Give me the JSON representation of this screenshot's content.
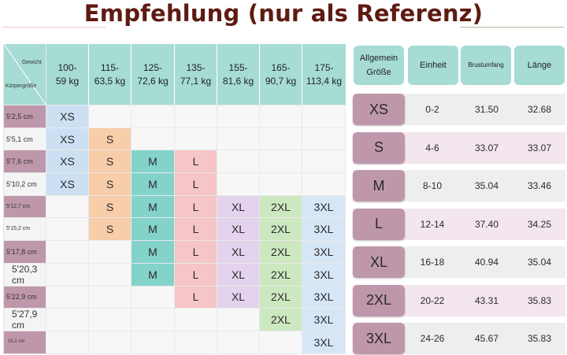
{
  "title": "Empfehlung (nur als Referenz)",
  "grid": {
    "corner_weight_label": "Gewicht",
    "corner_height_label": "Körpergröße",
    "weights": [
      [
        "100-",
        "59 kg"
      ],
      [
        "115-",
        "63,5 kg"
      ],
      [
        "125-",
        "72,6 kg"
      ],
      [
        "135-",
        "77,1 kg"
      ],
      [
        "155-",
        "81,6 kg"
      ],
      [
        "165-",
        "90,7 kg"
      ],
      [
        "175-",
        "113,4 kg"
      ]
    ],
    "rows": [
      {
        "label": "5'2,5 cm",
        "cells": [
          "XS",
          "",
          "",
          "",
          "",
          "",
          ""
        ]
      },
      {
        "label": "5'5,1 cm",
        "cells": [
          "XS",
          "S",
          "",
          "",
          "",
          "",
          ""
        ]
      },
      {
        "label": "5'7,6 cm",
        "cells": [
          "XS",
          "S",
          "M",
          "L",
          "",
          "",
          ""
        ]
      },
      {
        "label": "5'10,2 cm",
        "cells": [
          "XS",
          "S",
          "M",
          "L",
          "",
          "",
          ""
        ]
      },
      {
        "label": "5'12,7 cm",
        "cells": [
          "",
          "S",
          "M",
          "L",
          "XL",
          "2XL",
          "3XL"
        ]
      },
      {
        "label": "5'15,2 cm",
        "cells": [
          "",
          "S",
          "M",
          "L",
          "XL",
          "2XL",
          "3XL"
        ]
      },
      {
        "label": "5'17,8 cm",
        "cells": [
          "",
          "",
          "M",
          "L",
          "XL",
          "2XL",
          "3XL"
        ]
      },
      {
        "label": "5'20,3 cm",
        "cells": [
          "",
          "",
          "M",
          "L",
          "XL",
          "2XL",
          "3XL"
        ]
      },
      {
        "label": "5'22,9 cm",
        "cells": [
          "",
          "",
          "",
          "L",
          "XL",
          "2XL",
          "3XL"
        ]
      },
      {
        "label": "5'27,9 cm",
        "cells": [
          "",
          "",
          "",
          "",
          "",
          "2XL",
          "3XL"
        ]
      },
      {
        "label": "15,2 cm",
        "cells": [
          "",
          "",
          "",
          "",
          "",
          "",
          "3XL"
        ]
      }
    ]
  },
  "size_table": {
    "headers": [
      "Allgemein Größe",
      "Einheit",
      "Brustumfang",
      "Länge"
    ],
    "rows": [
      {
        "size": "XS",
        "einheit": "0-2",
        "brust": "31.50",
        "laenge": "32.68"
      },
      {
        "size": "S",
        "einheit": "4-6",
        "brust": "33.07",
        "laenge": "33.07"
      },
      {
        "size": "M",
        "einheit": "8-10",
        "brust": "35.04",
        "laenge": "33.46"
      },
      {
        "size": "L",
        "einheit": "12-14",
        "brust": "37.40",
        "laenge": "34.25"
      },
      {
        "size": "XL",
        "einheit": "16-18",
        "brust": "40.94",
        "laenge": "35.04"
      },
      {
        "size": "2XL",
        "einheit": "20-22",
        "brust": "43.31",
        "laenge": "35.83"
      },
      {
        "size": "3XL",
        "einheit": "24-26",
        "brust": "45.67",
        "laenge": "35.83"
      }
    ]
  },
  "colors": {
    "title": "#5e1b12",
    "header_teal": "#a6dcd4",
    "size_mauve": "#bf97aa",
    "XS": "#cde0f3",
    "S": "#f7cdaa",
    "M": "#83d3cb",
    "L": "#f5c5c7",
    "XL": "#e3d3ee",
    "2XL": "#cce8c0",
    "3XL": "#d7e6f7"
  }
}
